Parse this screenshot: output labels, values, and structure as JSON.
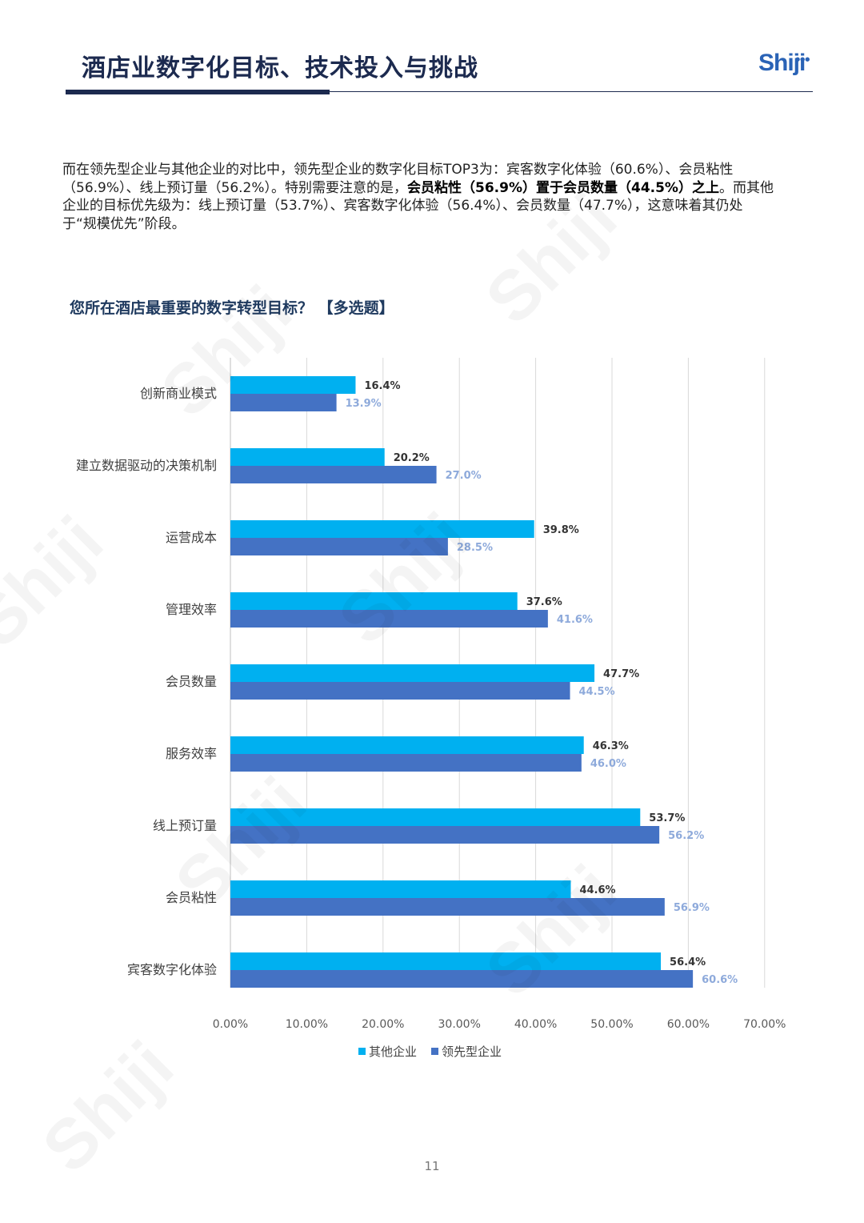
{
  "header": {
    "title": "酒店业数字化目标、技术投入与挑战",
    "logo": "Shiji"
  },
  "intro": {
    "p1": "而在领先型企业与其他企业的对比中，领先型企业的数字化目标TOP3为：宾客数字化体验（60.6%）、会员粘性（56.9%）、线上预订量（56.2%）。特别需要注意的是，",
    "bold": "会员粘性（56.9%）置于会员数量（44.5%）之上",
    "p2": "。而其他企业的目标优先级为：线上预订量（53.7%）、宾客数字化体验（56.4%）、会员数量（47.7%），这意味着其仍处于“规模优先”阶段。"
  },
  "chart_title": "您所在酒店最重要的数字转型目标？ 【多选题】",
  "chart_data": {
    "type": "bar",
    "orientation": "horizontal",
    "categories": [
      "创新商业模式",
      "建立数据驱动的决策机制",
      "运营成本",
      "管理效率",
      "会员数量",
      "服务效率",
      "线上预订量",
      "会员粘性",
      "宾客数字化体验"
    ],
    "series": [
      {
        "name": "其他企业",
        "color": "#00b0f0",
        "values": [
          16.4,
          20.2,
          39.8,
          37.6,
          47.7,
          46.3,
          53.7,
          44.6,
          56.4
        ],
        "labels": [
          "16.4%",
          "20.2%",
          "39.8%",
          "37.6%",
          "47.7%",
          "46.3%",
          "53.7%",
          "44.6%",
          "56.4%"
        ]
      },
      {
        "name": "领先型企业",
        "color": "#4472c4",
        "values": [
          13.9,
          27.0,
          28.5,
          41.6,
          44.5,
          46.0,
          56.2,
          56.9,
          60.6
        ],
        "labels": [
          "13.9%",
          "27.0%",
          "28.5%",
          "41.6%",
          "44.5%",
          "46.0%",
          "56.2%",
          "56.9%",
          "60.6%"
        ]
      }
    ],
    "xlim": [
      0,
      70
    ],
    "xticks": [
      "0.00%",
      "10.00%",
      "20.00%",
      "30.00%",
      "40.00%",
      "50.00%",
      "60.00%",
      "70.00%"
    ],
    "grid": true,
    "legend": "bottom"
  },
  "watermark": "Shiji",
  "page_number": "11"
}
